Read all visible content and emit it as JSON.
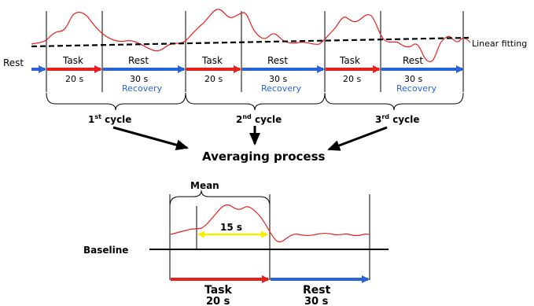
{
  "colors": {
    "signal": "#e8201c",
    "task_arrow": "#e8201c",
    "rest_arrow": "#2b63d6",
    "recovery_text": "#2b63d6",
    "window_arrow": "#f5f000",
    "dashed_fit": "#000000"
  },
  "top": {
    "rest_label": "Rest",
    "linear_fitting": "Linear fitting",
    "cycles": [
      {
        "task": "Task",
        "task_dur": "20 s",
        "rest": "Rest",
        "rest_dur": "30 s",
        "recovery": "Recovery",
        "label_main": "1",
        "label_sup": "st",
        "label_tail": " cycle"
      },
      {
        "task": "Task",
        "task_dur": "20 s",
        "rest": "Rest",
        "rest_dur": "30 s",
        "recovery": "Recovery",
        "label_main": "2",
        "label_sup": "nd",
        "label_tail": " cycle"
      },
      {
        "task": "Task",
        "task_dur": "20 s",
        "rest": "Rest",
        "rest_dur": "30 s",
        "recovery": "Recovery",
        "label_main": "3",
        "label_sup": "rd",
        "label_tail": " cycle"
      }
    ]
  },
  "middle": {
    "title": "Averaging process"
  },
  "bottom": {
    "mean": "Mean",
    "window": "15 s",
    "baseline": "Baseline",
    "task": "Task",
    "task_dur": "20 s",
    "rest": "Rest",
    "rest_dur": "30 s"
  }
}
